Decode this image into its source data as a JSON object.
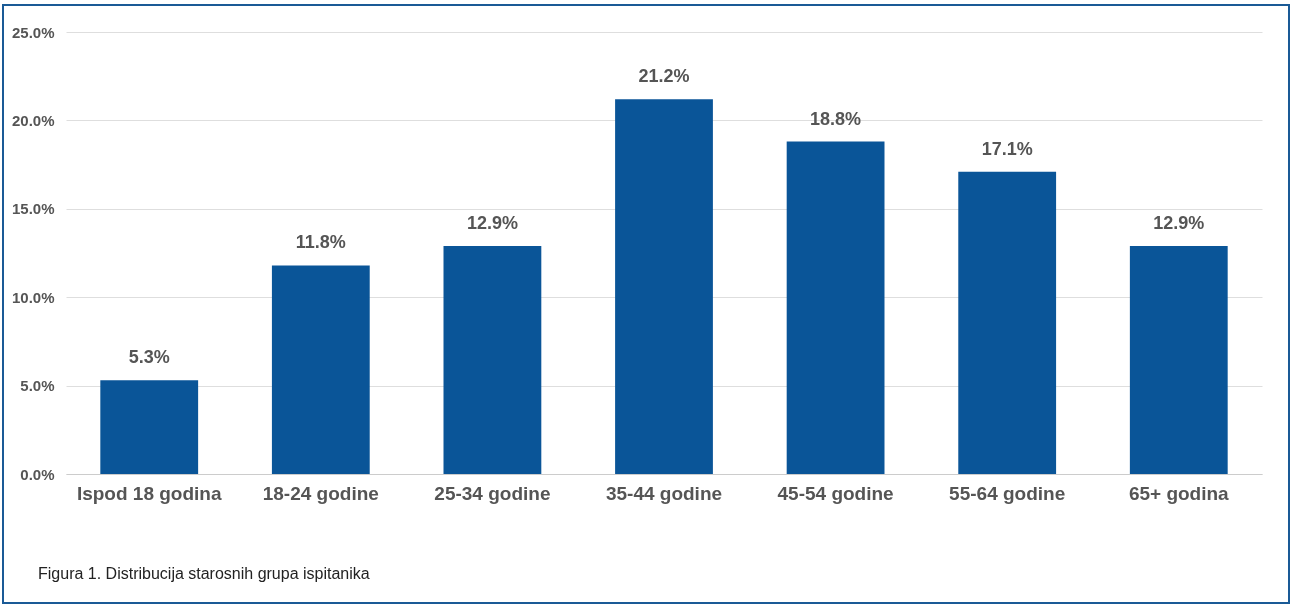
{
  "chart_data": {
    "type": "bar",
    "categories": [
      "Ispod 18 godina",
      "18-24  godine",
      "25-34  godine",
      "35-44  godine",
      "45-54  godine",
      "55-64  godine",
      "65+  godina"
    ],
    "values": [
      5.3,
      11.8,
      12.9,
      21.2,
      18.8,
      17.1,
      12.9
    ],
    "value_labels": [
      "5.3%",
      "11.8%",
      "12.9%",
      "21.2%",
      "18.8%",
      "17.1%",
      "12.9%"
    ],
    "color": "#0a5598",
    "ylim": [
      0,
      25
    ],
    "yticks": [
      {
        "value": 0,
        "label": "0.0%"
      },
      {
        "value": 5,
        "label": "5.0%"
      },
      {
        "value": 10,
        "label": "10.0%"
      },
      {
        "value": 15,
        "label": "15.0%"
      },
      {
        "value": 20,
        "label": "20.0%"
      },
      {
        "value": 25,
        "label": "25.0%"
      }
    ],
    "grid": true,
    "annotations": [
      "Figura 1. Distribucija starosnih grupa ispitanika"
    ]
  }
}
